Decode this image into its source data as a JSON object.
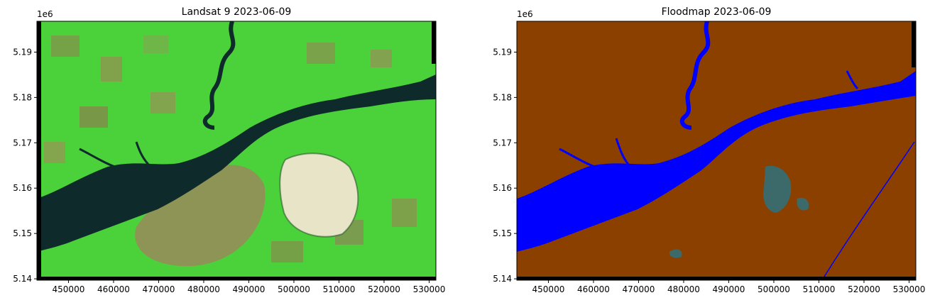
{
  "chart_data": [
    {
      "type": "heatmap",
      "title": "Landsat 9 2023-06-09",
      "x_offset_label": "",
      "y_offset_label": "1e6",
      "xlim": [
        443000,
        531500
      ],
      "ylim": [
        5.1397,
        5.1968
      ],
      "x_ticks": [
        450000,
        460000,
        470000,
        480000,
        490000,
        500000,
        510000,
        520000,
        530000
      ],
      "x_tick_labels": [
        "450000",
        "460000",
        "470000",
        "480000",
        "490000",
        "500000",
        "510000",
        "520000",
        "530000"
      ],
      "y_ticks": [
        5.14,
        5.15,
        5.16,
        5.17,
        5.18,
        5.19
      ],
      "y_tick_labels": [
        "5.14",
        "5.15",
        "5.16",
        "5.17",
        "5.18",
        "5.19"
      ],
      "colors": {
        "background": "#4bd23a",
        "water": "#0f2a2a",
        "field": "#8a7a4a",
        "bright": "#e8e4c8",
        "edge": "#000000"
      }
    },
    {
      "type": "heatmap",
      "title": "Floodmap 2023-06-09",
      "x_offset_label": "",
      "y_offset_label": "1e6",
      "xlim": [
        443000,
        531500
      ],
      "ylim": [
        5.1397,
        5.1968
      ],
      "x_ticks": [
        450000,
        460000,
        470000,
        480000,
        490000,
        500000,
        510000,
        520000,
        530000
      ],
      "x_tick_labels": [
        "450000",
        "460000",
        "470000",
        "480000",
        "490000",
        "500000",
        "510000",
        "520000",
        "530000"
      ],
      "y_ticks": [
        5.14,
        5.15,
        5.16,
        5.17,
        5.18,
        5.19
      ],
      "y_tick_labels": [
        "5.14",
        "5.15",
        "5.16",
        "5.17",
        "5.18",
        "5.19"
      ],
      "colors": {
        "land": "#8b4000",
        "water": "#0000ff",
        "flooded": "#3c6a6a",
        "edge": "#000000"
      }
    }
  ]
}
